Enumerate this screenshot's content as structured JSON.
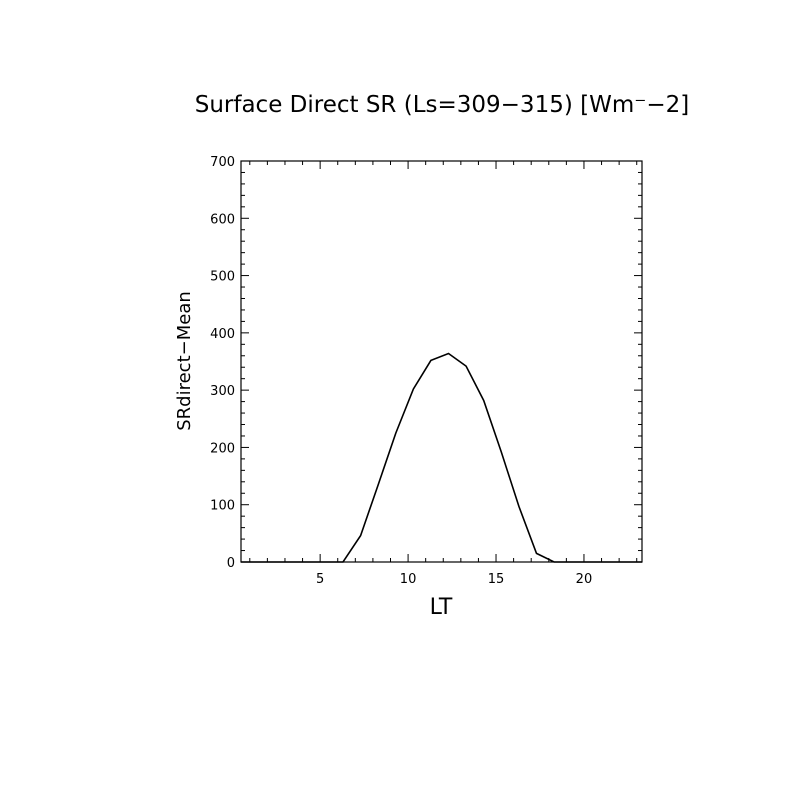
{
  "chart_data": {
    "type": "line",
    "title": "Surface Direct SR (Ls=309−315) [Wm⁻−2]",
    "xlabel": "LT",
    "ylabel": "SRdirect−Mean",
    "xlim": [
      0.5,
      23.3
    ],
    "ylim": [
      0,
      700
    ],
    "x_ticks": [
      5,
      10,
      15,
      20
    ],
    "y_ticks": [
      0,
      100,
      200,
      300,
      400,
      500,
      600,
      700
    ],
    "grid": false,
    "legend": "none",
    "line_color": "#000000",
    "series": [
      {
        "x": [
          0.5,
          1.5,
          2.5,
          3.5,
          4.5,
          5.5,
          6.3,
          7.3,
          8.3,
          9.3,
          10.3,
          11.3,
          12.3,
          13.3,
          14.3,
          15.3,
          16.3,
          17.3,
          18.3,
          19.3,
          20.3,
          21.3,
          22.3,
          23.3
        ],
        "values": [
          0,
          0,
          0,
          0,
          0,
          0,
          0,
          46,
          135,
          225,
          302,
          352,
          364,
          342,
          282,
          192,
          97,
          15,
          0,
          0,
          0,
          0,
          0,
          0
        ]
      }
    ]
  }
}
